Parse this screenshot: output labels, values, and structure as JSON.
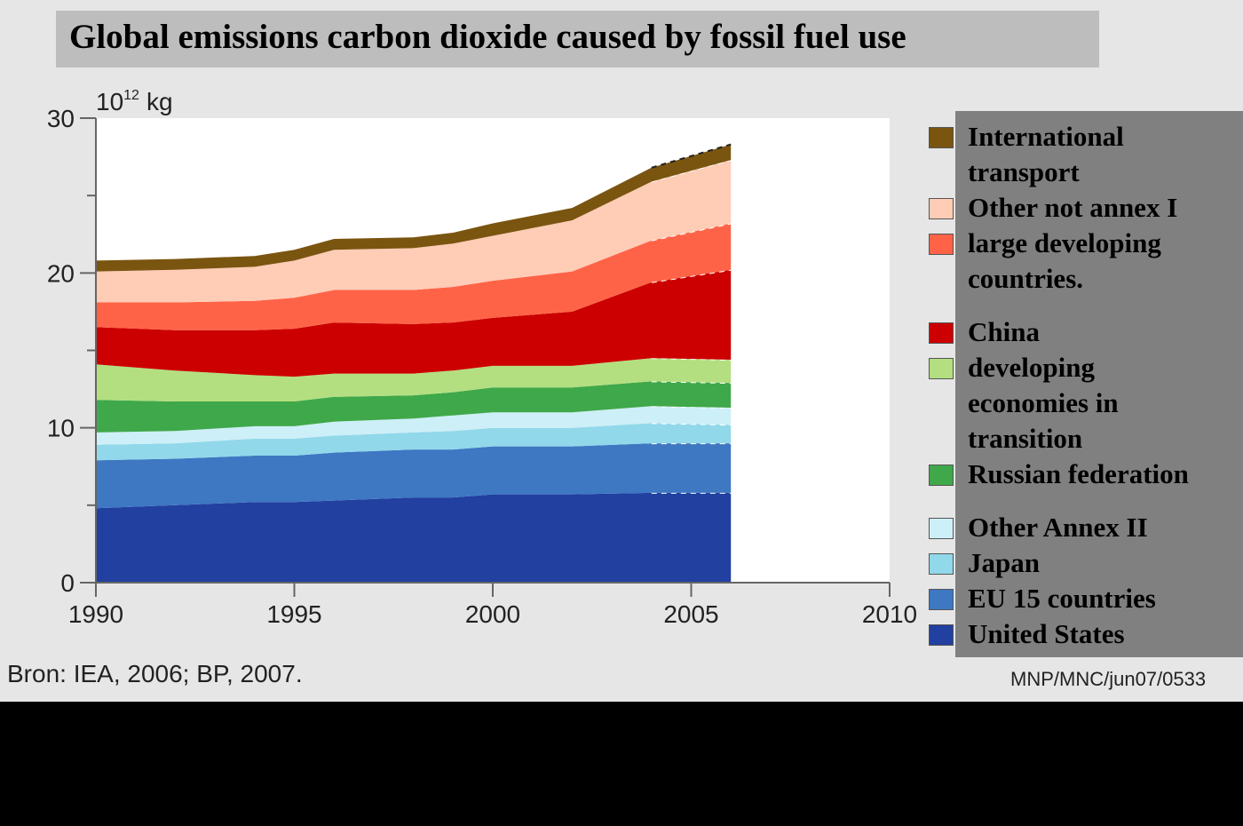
{
  "chart_data": {
    "type": "area",
    "title": "Global emissions carbon dioxide caused by fossil fuel use",
    "unit_base": "10",
    "unit_exp": "12",
    "unit_suffix": "kg",
    "x": [
      1990,
      1992,
      1994,
      1995,
      1996,
      1998,
      1999,
      2000,
      2002,
      2004,
      2006
    ],
    "xlim": [
      1990,
      2010
    ],
    "ylim": [
      0,
      30
    ],
    "x_ticks": [
      "1990",
      "1995",
      "2000",
      "2005",
      "2010"
    ],
    "y_ticks": [
      "0",
      "10",
      "20",
      "30"
    ],
    "series": [
      {
        "name": "United States",
        "color": "#2140a0",
        "values": [
          4.8,
          5.0,
          5.2,
          5.2,
          5.3,
          5.5,
          5.5,
          5.7,
          5.7,
          5.8,
          5.8
        ]
      },
      {
        "name": "EU 15 countries",
        "color": "#3e77c2",
        "values": [
          3.1,
          3.0,
          3.0,
          3.0,
          3.1,
          3.1,
          3.1,
          3.1,
          3.1,
          3.2,
          3.2
        ]
      },
      {
        "name": "Japan",
        "color": "#91d8ea",
        "values": [
          1.0,
          1.0,
          1.1,
          1.1,
          1.1,
          1.1,
          1.2,
          1.2,
          1.2,
          1.3,
          1.2
        ]
      },
      {
        "name": "Other Annex II",
        "color": "#cdeff7",
        "values": [
          0.8,
          0.8,
          0.8,
          0.8,
          0.9,
          0.9,
          1.0,
          1.0,
          1.0,
          1.1,
          1.1
        ]
      },
      {
        "name": "Russian federation",
        "color": "#3fa84a",
        "values": [
          2.1,
          1.9,
          1.6,
          1.6,
          1.6,
          1.5,
          1.5,
          1.6,
          1.6,
          1.6,
          1.6
        ]
      },
      {
        "name": "developing economies in transition",
        "color": "#b3df80",
        "values": [
          2.3,
          2.0,
          1.7,
          1.6,
          1.5,
          1.4,
          1.4,
          1.4,
          1.4,
          1.5,
          1.5
        ]
      },
      {
        "name": "China",
        "color": "#cc0000",
        "values": [
          2.4,
          2.6,
          2.9,
          3.1,
          3.3,
          3.2,
          3.1,
          3.1,
          3.5,
          4.9,
          5.8
        ]
      },
      {
        "name": "large developing countries.",
        "color": "#ff6347",
        "values": [
          1.6,
          1.8,
          1.9,
          2.0,
          2.1,
          2.2,
          2.3,
          2.4,
          2.6,
          2.7,
          3.0
        ]
      },
      {
        "name": "Other not annex I",
        "color": "#ffccb6",
        "values": [
          2.0,
          2.1,
          2.2,
          2.4,
          2.6,
          2.7,
          2.8,
          2.9,
          3.3,
          3.8,
          4.1
        ]
      },
      {
        "name": "International transport",
        "color": "#7a5510",
        "values": [
          0.7,
          0.7,
          0.7,
          0.7,
          0.7,
          0.7,
          0.7,
          0.8,
          0.8,
          0.9,
          1.0
        ]
      }
    ]
  },
  "legend": [
    {
      "lines": [
        "International",
        "transport"
      ],
      "swatch_color": "#7a5510"
    },
    {
      "lines": [
        "Other not annex I"
      ],
      "swatch_color": "#ffccb6"
    },
    {
      "lines": [
        "large developing",
        "countries."
      ],
      "swatch_color": "#ff6347"
    },
    {
      "lines": [
        "China"
      ],
      "swatch_color": "#cc0000"
    },
    {
      "lines": [
        "developing",
        "economies in",
        "transition"
      ],
      "swatch_color": "#b3df80"
    },
    {
      "lines": [
        "Russian federation"
      ],
      "swatch_color": "#3fa84a"
    },
    {
      "lines": [
        "Other Annex II"
      ],
      "swatch_color": "#cdeff7"
    },
    {
      "lines": [
        "Japan"
      ],
      "swatch_color": "#91d8ea"
    },
    {
      "lines": [
        "EU 15 countries"
      ],
      "swatch_color": "#3e77c2"
    },
    {
      "lines": [
        "United States"
      ],
      "swatch_color": "#2140a0"
    }
  ],
  "source": "Bron: IEA, 2006; BP, 2007.",
  "credit": "MNP/MNC/jun07/0533"
}
